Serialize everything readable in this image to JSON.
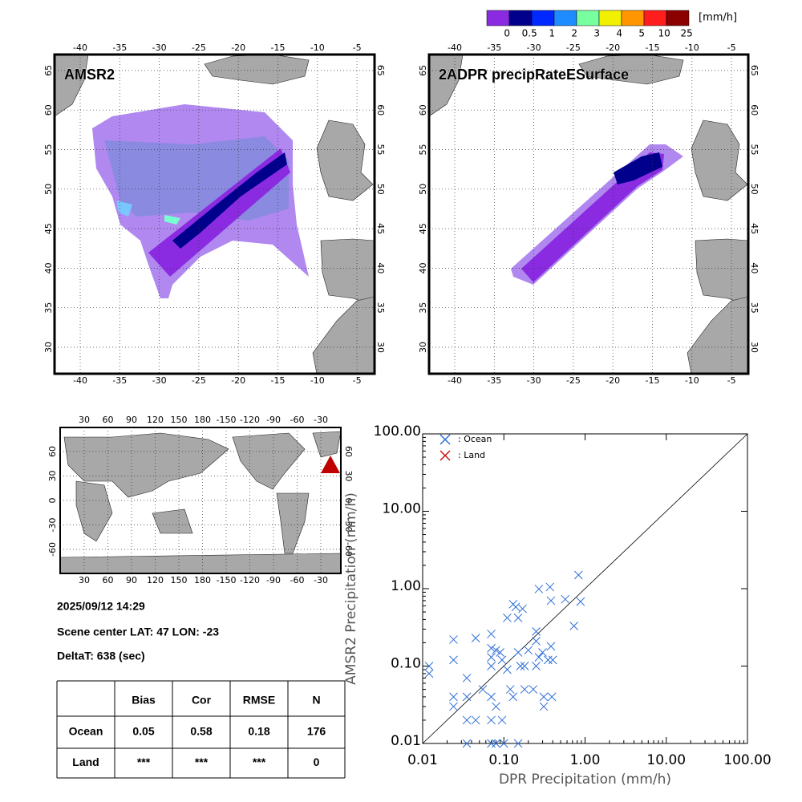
{
  "colorbar": {
    "unit": "[mm/h]",
    "colors": [
      "#8a2be2",
      "#00008c",
      "#0028ff",
      "#1e8cff",
      "#78ffa0",
      "#f0f000",
      "#ff9600",
      "#ff1e1e",
      "#8b0000"
    ],
    "labels": [
      "0",
      "0.5",
      "1",
      "2",
      "3",
      "4",
      "5",
      "10",
      "25"
    ]
  },
  "maps": [
    {
      "title": "AMSR2"
    },
    {
      "title": "2ADPR precipRateESurface"
    }
  ],
  "map_axes": {
    "lon_ticks": [
      -40,
      -35,
      -30,
      -25,
      -20,
      -15,
      -10,
      -5
    ],
    "lat_ticks": [
      30,
      35,
      40,
      45,
      50,
      55,
      60,
      65
    ]
  },
  "world_map": {
    "lon_ticks": [
      "30",
      "60",
      "90",
      "120",
      "150",
      "180",
      "-150",
      "-120",
      "-90",
      "-60",
      "-30"
    ],
    "lat_ticks": [
      "60",
      "30",
      "0",
      "-30",
      "-60"
    ]
  },
  "info": {
    "datetime": "2025/09/12 14:29",
    "scene_center": "Scene center LAT: 47   LON: -23",
    "delta_t": "DeltaT:  638 (sec)"
  },
  "table": {
    "header": [
      "Bias",
      "Cor",
      "RMSE",
      "N"
    ],
    "rows": [
      {
        "label": "Ocean",
        "cells": [
          "0.05",
          "0.58",
          "0.18",
          "176"
        ]
      },
      {
        "label": "Land",
        "cells": [
          "***",
          "***",
          "***",
          "0"
        ]
      }
    ]
  },
  "chart_data": {
    "type": "scatter",
    "x_label": "DPR Precipitation (mm/h)",
    "y_label": "AMSR2 Precipitation (mm/h)",
    "log_x": true,
    "log_y": true,
    "xlim": [
      0.01,
      100
    ],
    "ylim": [
      0.01,
      100
    ],
    "xticks": [
      0.01,
      {
        "value": 0.1,
        "label": "0.10"
      },
      {
        "value": 1,
        "label": "1.00"
      },
      {
        "value": 10,
        "label": "10.00"
      },
      {
        "value": 100,
        "label": "100.00"
      }
    ],
    "yticks": [
      0.01,
      {
        "value": 0.1,
        "label": "0.10"
      },
      {
        "value": 1,
        "label": "1.00"
      },
      {
        "value": 10,
        "label": "10.00"
      },
      {
        "value": 100,
        "label": "100.00"
      }
    ],
    "legend": "upper-left",
    "series": [
      {
        "name": ": Ocean",
        "color": "#2f6fd6",
        "x": [
          0.012,
          0.012,
          0.024,
          0.024,
          0.024,
          0.024,
          0.035,
          0.035,
          0.035,
          0.035,
          0.045,
          0.045,
          0.055,
          0.07,
          0.07,
          0.07,
          0.07,
          0.07,
          0.07,
          0.07,
          0.08,
          0.08,
          0.08,
          0.09,
          0.095,
          0.095,
          0.1,
          0.11,
          0.11,
          0.12,
          0.13,
          0.13,
          0.14,
          0.15,
          0.15,
          0.15,
          0.16,
          0.17,
          0.18,
          0.18,
          0.2,
          0.23,
          0.25,
          0.25,
          0.25,
          0.27,
          0.27,
          0.3,
          0.31,
          0.31,
          0.35,
          0.37,
          0.38,
          0.38,
          0.39,
          0.4,
          0.57,
          0.73,
          0.83,
          0.88
        ],
        "values": [
          0.1,
          0.08,
          0.22,
          0.12,
          0.04,
          0.03,
          0.07,
          0.04,
          0.02,
          0.01,
          0.23,
          0.02,
          0.05,
          0.26,
          0.17,
          0.13,
          0.1,
          0.04,
          0.02,
          0.01,
          0.16,
          0.03,
          0.01,
          0.15,
          0.12,
          0.02,
          0.01,
          0.42,
          0.09,
          0.05,
          0.63,
          0.04,
          0.58,
          0.42,
          0.15,
          0.01,
          0.1,
          0.55,
          0.1,
          0.05,
          0.16,
          0.05,
          0.28,
          0.21,
          0.1,
          0.99,
          0.13,
          0.15,
          0.04,
          0.03,
          0.12,
          1.05,
          0.7,
          0.18,
          0.04,
          0.12,
          0.73,
          0.33,
          1.5,
          0.68
        ]
      },
      {
        "name": ": Land",
        "color": "#c81414",
        "x": [],
        "values": []
      }
    ]
  }
}
